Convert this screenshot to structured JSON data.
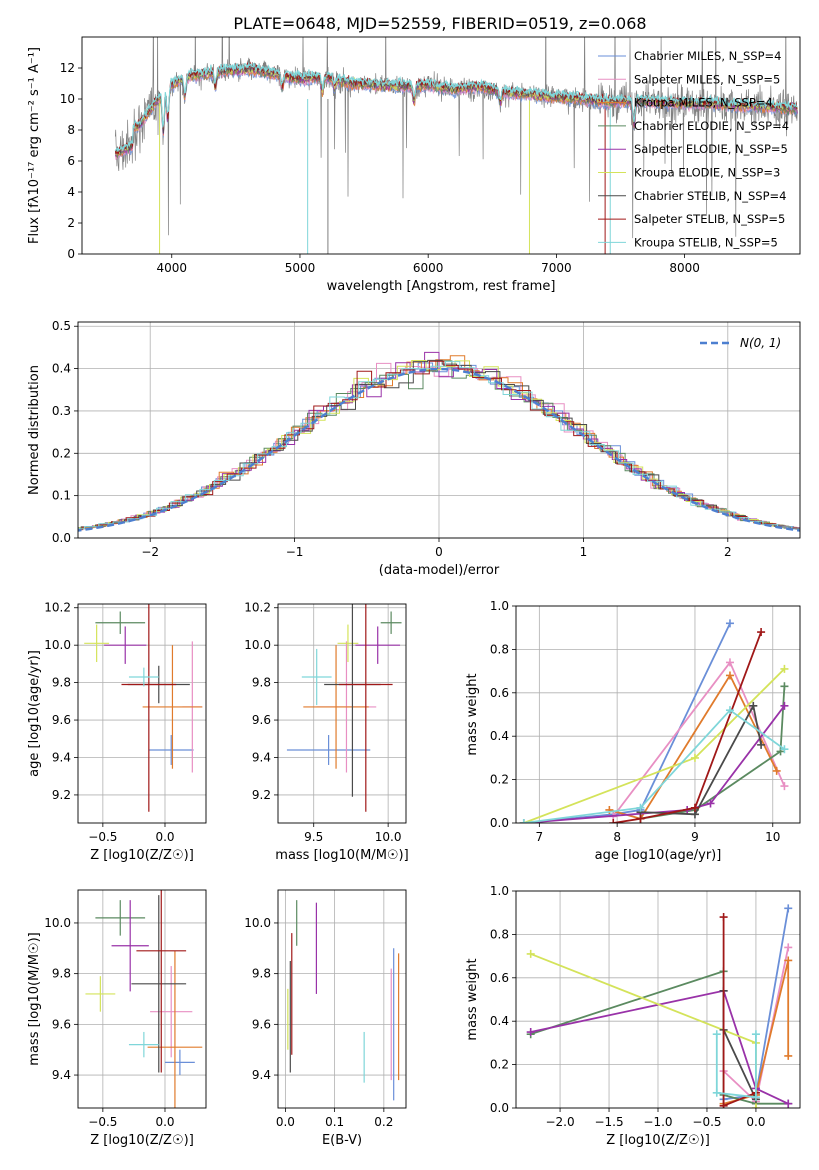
{
  "figure": {
    "title": "PLATE=0648, MJD=52559, FIBERID=0519, z=0.068"
  },
  "chart_data": [
    {
      "id": "spectrum",
      "type": "line",
      "xlabel": "wavelength [Angstrom, rest frame]",
      "ylabel": "Flux [fλ10⁻¹⁷ erg cm⁻² s⁻¹ A⁻¹]",
      "xlim": [
        3300,
        8900
      ],
      "ylim": [
        0,
        14
      ],
      "xticks": [
        4000,
        5000,
        6000,
        7000,
        8000
      ],
      "yticks": [
        0,
        2,
        4,
        6,
        8,
        10,
        12
      ],
      "grid": false,
      "legend_position": "right",
      "data_color": "#808080",
      "series": [
        {
          "name": "Chabrier MILES, N_SSP=4",
          "color": "#6a8fd8"
        },
        {
          "name": "Salpeter MILES, N_SSP=5",
          "color": "#e88fc3"
        },
        {
          "name": "Kroupa MILES, N_SSP=4",
          "color": "#e07b2c"
        },
        {
          "name": "Chabrier ELODIE, N_SSP=4",
          "color": "#5b8a60"
        },
        {
          "name": "Salpeter ELODIE, N_SSP=5",
          "color": "#9932a8"
        },
        {
          "name": "Kroupa ELODIE, N_SSP=3",
          "color": "#d4e35a"
        },
        {
          "name": "Chabrier STELIB, N_SSP=4",
          "color": "#4a4a4a"
        },
        {
          "name": "Salpeter STELIB, N_SSP=5",
          "color": "#a01818"
        },
        {
          "name": "Kroupa STELIB, N_SSP=5",
          "color": "#7fd6d9"
        }
      ],
      "continuum": {
        "x": [
          3550,
          3650,
          3750,
          3850,
          3950,
          4050,
          4150,
          4250,
          4400,
          4600,
          4800,
          5000,
          5200,
          5400,
          5600,
          5800,
          6000,
          6200,
          6400,
          6600,
          6800,
          7000,
          7200,
          7400,
          7600,
          7800,
          8000,
          8200,
          8400,
          8600,
          8800
        ],
        "y": [
          7.6,
          8.0,
          8.3,
          9.5,
          10.6,
          11.2,
          11.5,
          11.6,
          11.8,
          11.9,
          11.6,
          11.3,
          11.4,
          11.0,
          10.9,
          10.8,
          10.9,
          10.6,
          10.8,
          10.4,
          10.3,
          10.1,
          10.0,
          9.8,
          9.9,
          9.8,
          9.7,
          9.7,
          9.6,
          9.5,
          9.4
        ]
      }
    },
    {
      "id": "residuals",
      "type": "histogram",
      "xlabel": "(data-model)/error",
      "ylabel": "Normed distribution",
      "xlim": [
        -2.5,
        2.5
      ],
      "ylim": [
        0,
        0.51
      ],
      "xticks": [
        -2,
        -1,
        0,
        1,
        2
      ],
      "yticks": [
        0.0,
        0.1,
        0.2,
        0.3,
        0.4,
        0.5
      ],
      "grid": true,
      "legend_position": "top-right",
      "normal_curve": {
        "name": "N(0, 1)",
        "color": "#4c7fd0",
        "mean": 0,
        "sigma": 1
      }
    },
    {
      "id": "age-vs-Z",
      "type": "errorbar",
      "xlabel": "Z [log10(Z/Z☉)]",
      "ylabel": "age  [log10(age/yr)]",
      "xlim": [
        -0.7,
        0.33
      ],
      "ylim": [
        9.05,
        10.22
      ],
      "xticks": [
        -0.5,
        0.0
      ],
      "yticks": [
        9.2,
        9.4,
        9.6,
        9.8,
        10.0,
        10.2
      ],
      "grid": true,
      "points": [
        {
          "x": 0.05,
          "y": 9.44,
          "xerr": 0.18,
          "yerr": 0.08,
          "color": "#6a8fd8"
        },
        {
          "x": 0.22,
          "y": 9.67,
          "xerr": 0.08,
          "yerr": 0.35,
          "color": "#e88fc3"
        },
        {
          "x": 0.06,
          "y": 9.67,
          "xerr": 0.24,
          "yerr": 0.33,
          "color": "#e07b2c"
        },
        {
          "x": -0.36,
          "y": 10.12,
          "xerr": 0.2,
          "yerr": 0.06,
          "color": "#5b8a60"
        },
        {
          "x": -0.32,
          "y": 10.0,
          "xerr": 0.17,
          "yerr": 0.1,
          "color": "#9932a8"
        },
        {
          "x": -0.55,
          "y": 10.01,
          "xerr": 0.1,
          "yerr": 0.1,
          "color": "#d4e35a"
        },
        {
          "x": -0.05,
          "y": 9.79,
          "xerr": 0.25,
          "yerr": 0.1,
          "color": "#4a4a4a"
        },
        {
          "x": -0.13,
          "y": 9.79,
          "xerr": 0.22,
          "yerr": 0.68,
          "color": "#a01818"
        },
        {
          "x": -0.17,
          "y": 9.83,
          "xerr": 0.12,
          "yerr": 0.05,
          "color": "#7fd6d9"
        }
      ]
    },
    {
      "id": "age-vs-mass",
      "type": "errorbar",
      "xlabel": "mass [log10(M/M☉)]",
      "ylabel": "",
      "xlim": [
        9.26,
        10.12
      ],
      "ylim": [
        9.05,
        10.22
      ],
      "xticks": [
        9.5,
        10.0
      ],
      "yticks": [
        9.2,
        9.4,
        9.6,
        9.8,
        10.0,
        10.2
      ],
      "grid": true,
      "points": [
        {
          "x": 9.6,
          "y": 9.44,
          "xerr": 0.28,
          "yerr": 0.08,
          "color": "#6a8fd8"
        },
        {
          "x": 9.72,
          "y": 9.67,
          "xerr": 0.2,
          "yerr": 0.35,
          "color": "#e88fc3"
        },
        {
          "x": 9.65,
          "y": 9.67,
          "xerr": 0.22,
          "yerr": 0.33,
          "color": "#e07b2c"
        },
        {
          "x": 10.02,
          "y": 10.12,
          "xerr": 0.07,
          "yerr": 0.06,
          "color": "#5b8a60"
        },
        {
          "x": 9.93,
          "y": 10.0,
          "xerr": 0.15,
          "yerr": 0.1,
          "color": "#9932a8"
        },
        {
          "x": 9.73,
          "y": 10.01,
          "xerr": 0.07,
          "yerr": 0.1,
          "color": "#d4e35a"
        },
        {
          "x": 9.76,
          "y": 9.79,
          "xerr": 0.19,
          "yerr": 0.6,
          "color": "#4a4a4a"
        },
        {
          "x": 9.85,
          "y": 9.79,
          "xerr": 0.18,
          "yerr": 0.68,
          "color": "#a01818"
        },
        {
          "x": 9.52,
          "y": 9.83,
          "xerr": 0.1,
          "yerr": 0.15,
          "color": "#7fd6d9"
        }
      ]
    },
    {
      "id": "massweight-vs-age",
      "type": "line",
      "xlabel": "age  [log10(age/yr)]",
      "ylabel": "mass weight",
      "xlim": [
        6.7,
        10.35
      ],
      "ylim": [
        0,
        1
      ],
      "xticks": [
        7,
        8,
        9,
        10
      ],
      "yticks": [
        0.0,
        0.2,
        0.4,
        0.6,
        0.8,
        1.0
      ],
      "grid": true,
      "series": [
        {
          "color": "#6a8fd8",
          "x": [
            6.8,
            7.95,
            8.3,
            9.45
          ],
          "y": [
            0.0,
            0.04,
            0.06,
            0.92
          ]
        },
        {
          "color": "#e88fc3",
          "x": [
            7.95,
            9.45,
            10.15
          ],
          "y": [
            0.03,
            0.74,
            0.17
          ]
        },
        {
          "color": "#e07b2c",
          "x": [
            7.9,
            8.3,
            9.45,
            10.05
          ],
          "y": [
            0.06,
            0.02,
            0.68,
            0.24
          ]
        },
        {
          "color": "#5b8a60",
          "x": [
            8.3,
            9.0,
            10.1,
            10.15
          ],
          "y": [
            0.02,
            0.06,
            0.33,
            0.63
          ]
        },
        {
          "color": "#9932a8",
          "x": [
            6.8,
            8.9,
            9.2,
            10.15
          ],
          "y": [
            0.0,
            0.06,
            0.09,
            0.54
          ]
        },
        {
          "color": "#d4e35a",
          "x": [
            6.8,
            9.0,
            10.15
          ],
          "y": [
            0.0,
            0.3,
            0.71
          ]
        },
        {
          "color": "#4a4a4a",
          "x": [
            8.3,
            9.0,
            9.75,
            9.85
          ],
          "y": [
            0.05,
            0.04,
            0.54,
            0.36
          ]
        },
        {
          "color": "#a01818",
          "x": [
            7.95,
            8.3,
            9.0,
            9.85
          ],
          "y": [
            0.0,
            0.02,
            0.07,
            0.88
          ]
        },
        {
          "color": "#7fd6d9",
          "x": [
            6.8,
            8.3,
            9.45,
            10.15
          ],
          "y": [
            0.0,
            0.07,
            0.52,
            0.34
          ]
        }
      ]
    },
    {
      "id": "mass-vs-Z",
      "type": "errorbar",
      "xlabel": "Z [log10(Z/Z☉)]",
      "ylabel": "mass [log10(M/M☉)]",
      "xlim": [
        -0.7,
        0.33
      ],
      "ylim": [
        9.27,
        10.13
      ],
      "xticks": [
        -0.5,
        0.0
      ],
      "yticks": [
        9.4,
        9.6,
        9.8,
        10.0
      ],
      "grid": true,
      "points": [
        {
          "x": 0.12,
          "y": 9.45,
          "xerr": 0.12,
          "yerr": 0.05,
          "color": "#6a8fd8"
        },
        {
          "x": 0.05,
          "y": 9.65,
          "xerr": 0.17,
          "yerr": 0.18,
          "color": "#e88fc3"
        },
        {
          "x": 0.08,
          "y": 9.51,
          "xerr": 0.22,
          "yerr": 0.38,
          "color": "#e07b2c"
        },
        {
          "x": -0.36,
          "y": 10.02,
          "xerr": 0.2,
          "yerr": 0.07,
          "color": "#5b8a60"
        },
        {
          "x": -0.28,
          "y": 9.91,
          "xerr": 0.15,
          "yerr": 0.18,
          "color": "#9932a8"
        },
        {
          "x": -0.52,
          "y": 9.72,
          "xerr": 0.12,
          "yerr": 0.07,
          "color": "#d4e35a"
        },
        {
          "x": -0.05,
          "y": 9.76,
          "xerr": 0.22,
          "yerr": 0.35,
          "color": "#4a4a4a"
        },
        {
          "x": -0.03,
          "y": 9.89,
          "xerr": 0.2,
          "yerr": 0.48,
          "color": "#a01818"
        },
        {
          "x": -0.17,
          "y": 9.52,
          "xerr": 0.12,
          "yerr": 0.05,
          "color": "#7fd6d9"
        }
      ]
    },
    {
      "id": "mass-vs-ebv",
      "type": "errorbar",
      "xlabel": "E(B-V)",
      "ylabel": "",
      "xlim": [
        -0.015,
        0.245
      ],
      "ylim": [
        9.27,
        10.13
      ],
      "xticks": [
        0.0,
        0.1,
        0.2
      ],
      "xtick_labels": [
        "0.0",
        "0.1",
        "0.2"
      ],
      "yticks": [
        9.4,
        9.6,
        9.8,
        10.0
      ],
      "grid": true,
      "points": [
        {
          "x": 0.22,
          "y": 9.6,
          "xerr": 0,
          "yerr": 0.3,
          "color": "#6a8fd8"
        },
        {
          "x": 0.215,
          "y": 9.6,
          "xerr": 0,
          "yerr": 0.22,
          "color": "#e88fc3"
        },
        {
          "x": 0.23,
          "y": 9.63,
          "xerr": 0,
          "yerr": 0.25,
          "color": "#e07b2c"
        },
        {
          "x": 0.023,
          "y": 10.0,
          "xerr": 0,
          "yerr": 0.09,
          "color": "#5b8a60"
        },
        {
          "x": 0.063,
          "y": 9.9,
          "xerr": 0,
          "yerr": 0.18,
          "color": "#9932a8"
        },
        {
          "x": 0.005,
          "y": 9.62,
          "xerr": 0,
          "yerr": 0.12,
          "color": "#d4e35a"
        },
        {
          "x": 0.01,
          "y": 9.63,
          "xerr": 0,
          "yerr": 0.22,
          "color": "#4a4a4a"
        },
        {
          "x": 0.013,
          "y": 9.72,
          "xerr": 0,
          "yerr": 0.24,
          "color": "#a01818"
        },
        {
          "x": 0.16,
          "y": 9.47,
          "xerr": 0,
          "yerr": 0.1,
          "color": "#7fd6d9"
        }
      ]
    },
    {
      "id": "massweight-vs-Z",
      "type": "line",
      "xlabel": "Z [log10(Z/Z☉)]",
      "ylabel": "mass weight",
      "xlim": [
        -2.45,
        0.45
      ],
      "ylim": [
        0,
        1
      ],
      "xticks": [
        -2.0,
        -1.5,
        -1.0,
        -0.5,
        0.0
      ],
      "yticks": [
        0.0,
        0.2,
        0.4,
        0.6,
        0.8,
        1.0
      ],
      "grid": true,
      "series": [
        {
          "color": "#6a8fd8",
          "x": [
            -0.33,
            0.0,
            0.33
          ],
          "y": [
            0.04,
            0.06,
            0.92
          ]
        },
        {
          "color": "#e88fc3",
          "x": [
            -0.33,
            0.0,
            0.33
          ],
          "y": [
            0.17,
            0.03,
            0.74
          ]
        },
        {
          "color": "#e07b2c",
          "x": [
            -0.33,
            0.0,
            0.33,
            0.33
          ],
          "y": [
            0.02,
            0.06,
            0.68,
            0.24
          ]
        },
        {
          "color": "#5b8a60",
          "x": [
            -2.3,
            -0.33,
            -0.33,
            0.0,
            0.33
          ],
          "y": [
            0.34,
            0.63,
            0.06,
            0.02,
            0.02
          ]
        },
        {
          "color": "#9932a8",
          "x": [
            -2.3,
            -0.33,
            0.0,
            0.33
          ],
          "y": [
            0.35,
            0.54,
            0.09,
            0.02
          ]
        },
        {
          "color": "#d4e35a",
          "x": [
            -2.3,
            0.0,
            0.0
          ],
          "y": [
            0.71,
            0.3,
            0.0
          ]
        },
        {
          "color": "#4a4a4a",
          "x": [
            -0.33,
            -0.33,
            0.0
          ],
          "y": [
            0.54,
            0.36,
            0.04
          ]
        },
        {
          "color": "#a01818",
          "x": [
            -0.33,
            -0.33,
            0.0
          ],
          "y": [
            0.88,
            0.01,
            0.07
          ]
        },
        {
          "color": "#7fd6d9",
          "x": [
            -0.4,
            -0.4,
            0.0,
            0.0
          ],
          "y": [
            0.34,
            0.07,
            0.05,
            0.34
          ]
        }
      ]
    }
  ]
}
